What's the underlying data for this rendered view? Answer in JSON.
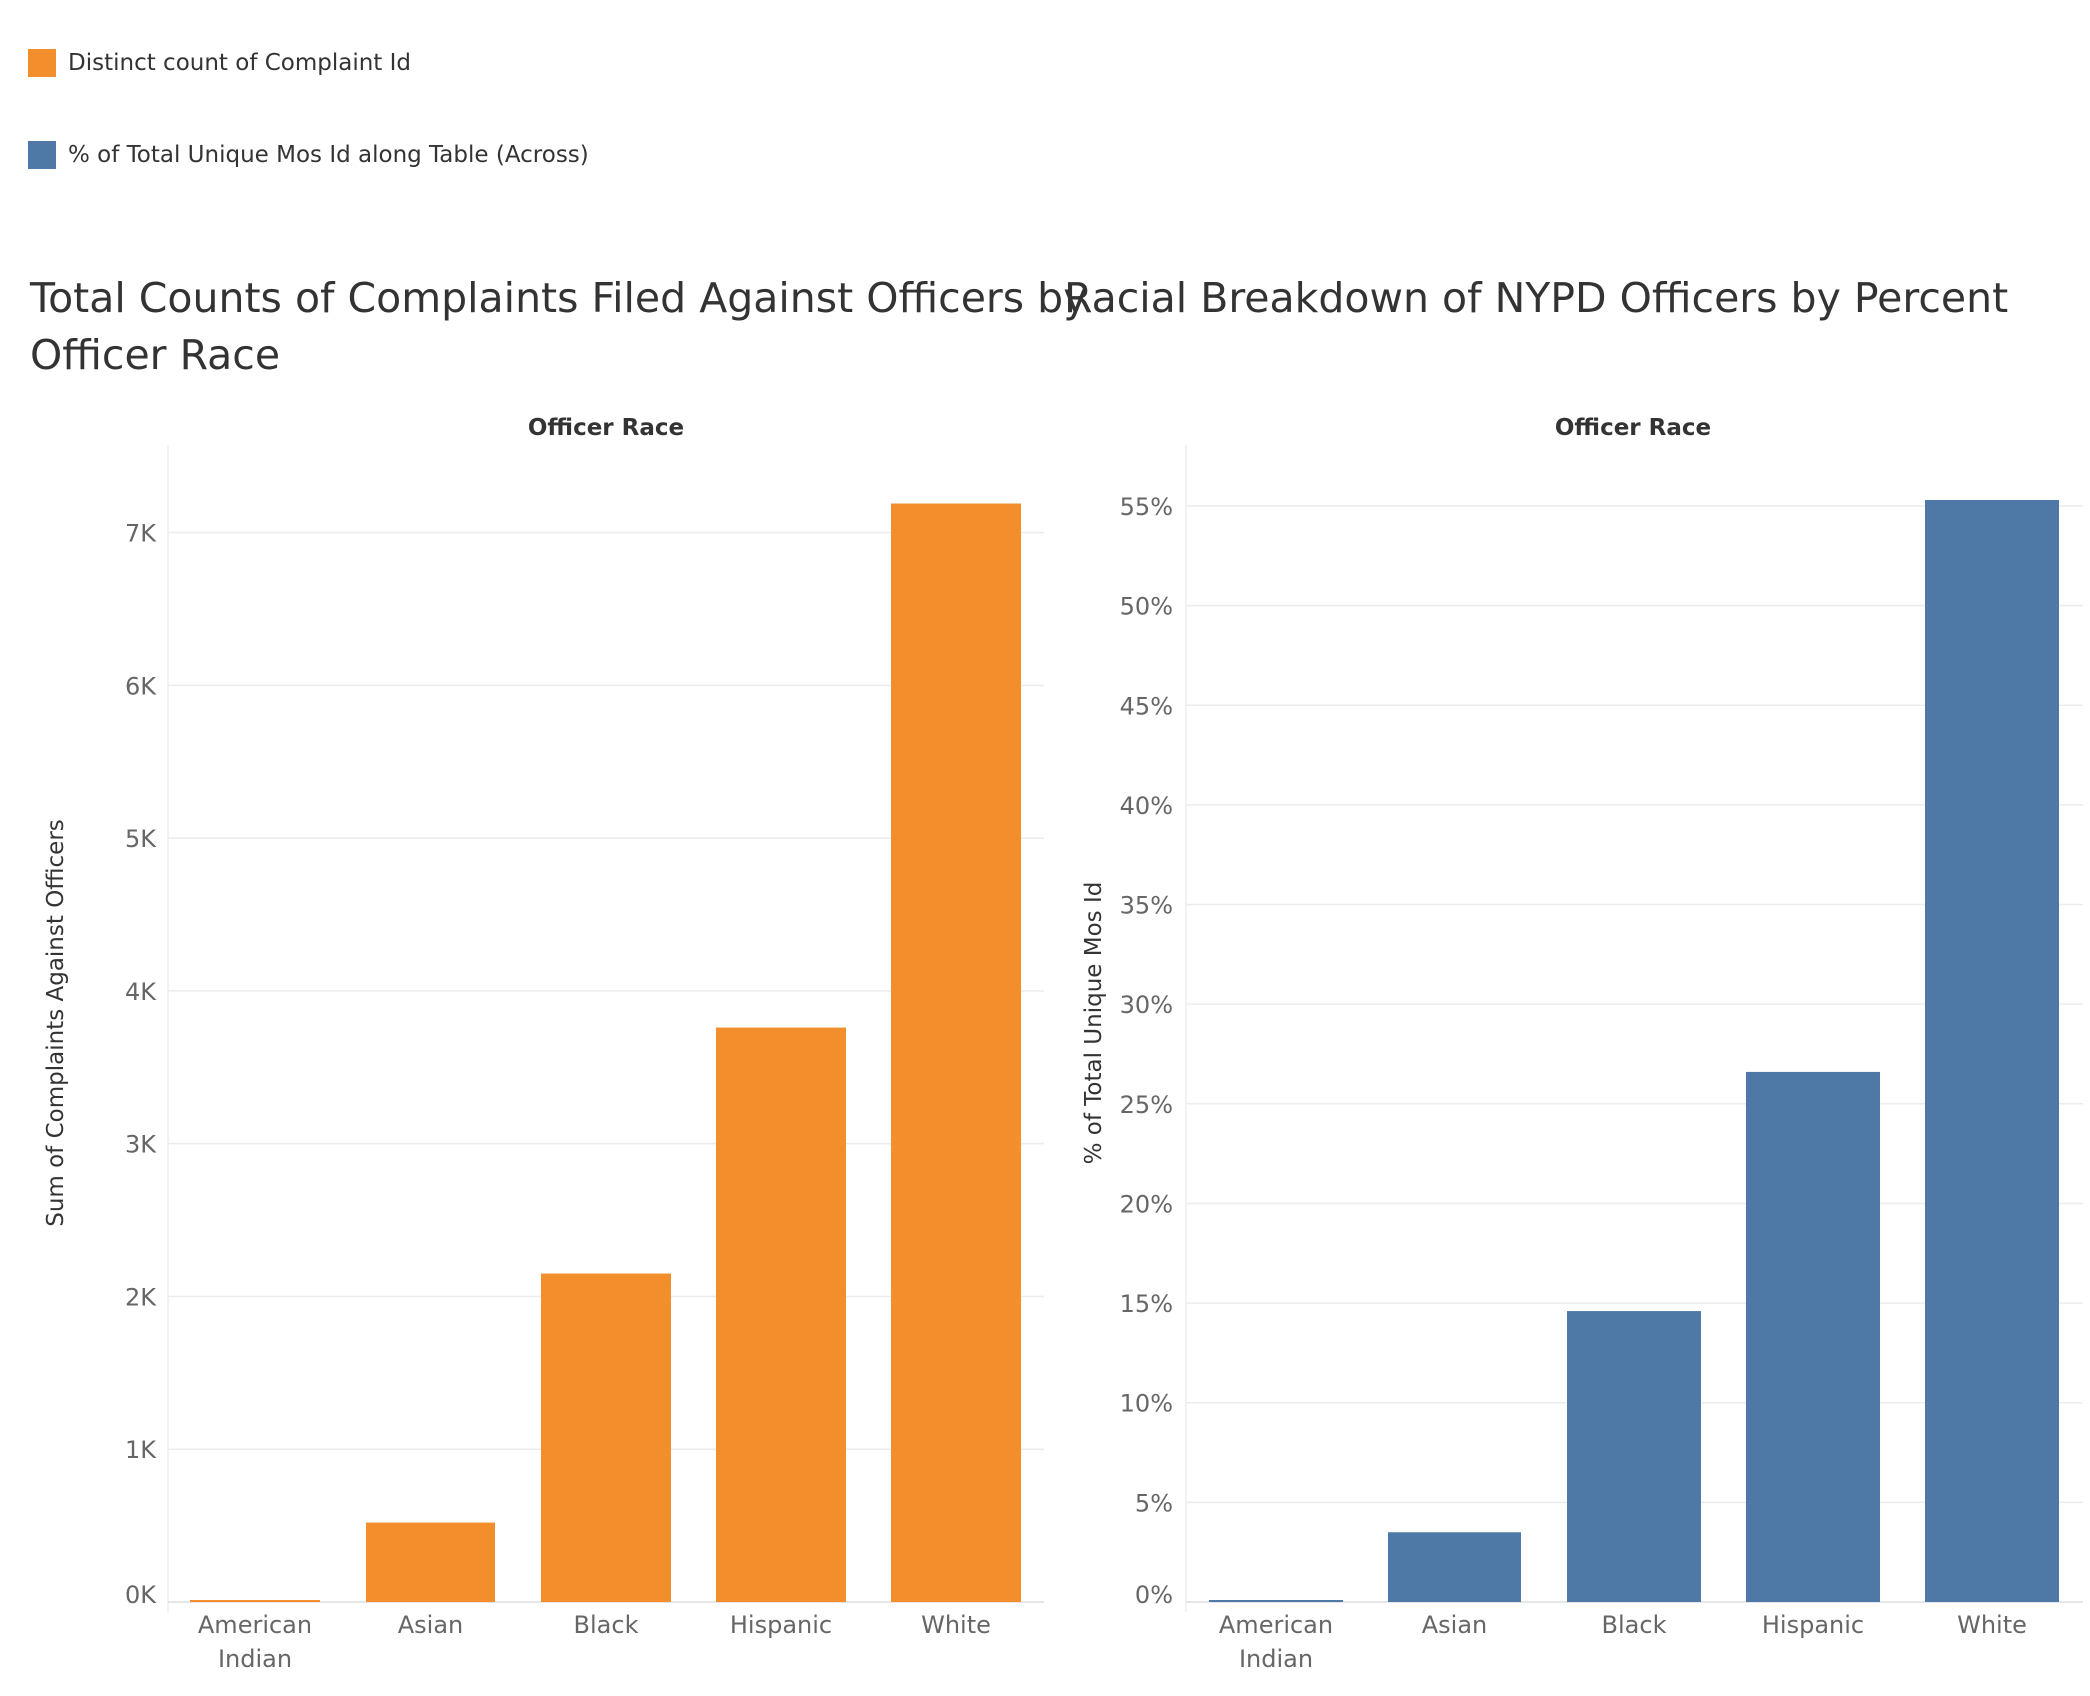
{
  "legend": {
    "items": [
      {
        "label": "Distinct count of Complaint Id",
        "color": "#f28e2b"
      },
      {
        "label": "% of Total Unique Mos Id along Table (Across)",
        "color": "#4e79a7"
      }
    ]
  },
  "chart_data": [
    {
      "type": "bar",
      "title": "Total Counts of Complaints Filed Against Officers by Officer Race",
      "title_lines": [
        "Total Counts of Complaints Filed Against Officers by",
        "Officer Race"
      ],
      "xlabel": "Officer Race",
      "ylabel": "Sum of Complaints Against Officers",
      "categories": [
        "American Indian",
        "Asian",
        "Black",
        "Hispanic",
        "White"
      ],
      "category_lines": [
        [
          "American",
          "Indian"
        ],
        [
          "Asian"
        ],
        [
          "Black"
        ],
        [
          "Hispanic"
        ],
        [
          "White"
        ]
      ],
      "series": [
        {
          "values": [
            10,
            520,
            2150,
            3760,
            7190
          ],
          "color": "#f28e2b"
        }
      ],
      "ylim": [
        0,
        7200
      ],
      "yticks": [
        0,
        1000,
        2000,
        3000,
        4000,
        5000,
        6000,
        7000
      ],
      "ytick_labels": [
        "0K",
        "1K",
        "2K",
        "3K",
        "4K",
        "5K",
        "6K",
        "7K"
      ],
      "grid": true
    },
    {
      "type": "bar",
      "title": "Racial Breakdown of NYPD Officers by Percent",
      "title_lines": [
        "Racial Breakdown of NYPD Officers by Percent"
      ],
      "xlabel": "Officer Race",
      "ylabel": "% of Total Unique Mos Id",
      "categories": [
        "American Indian",
        "Asian",
        "Black",
        "Hispanic",
        "White"
      ],
      "category_lines": [
        [
          "American",
          "Indian"
        ],
        [
          "Asian"
        ],
        [
          "Black"
        ],
        [
          "Hispanic"
        ],
        [
          "White"
        ]
      ],
      "series": [
        {
          "values": [
            0.1,
            3.5,
            14.6,
            26.6,
            55.3
          ],
          "color": "#4e79a7"
        }
      ],
      "ylim": [
        0,
        55.3
      ],
      "yticks": [
        0,
        5,
        10,
        15,
        20,
        25,
        30,
        35,
        40,
        45,
        50,
        55
      ],
      "ytick_labels": [
        "0%",
        "5%",
        "10%",
        "15%",
        "20%",
        "25%",
        "30%",
        "35%",
        "40%",
        "45%",
        "50%",
        "55%"
      ],
      "grid": true
    }
  ]
}
